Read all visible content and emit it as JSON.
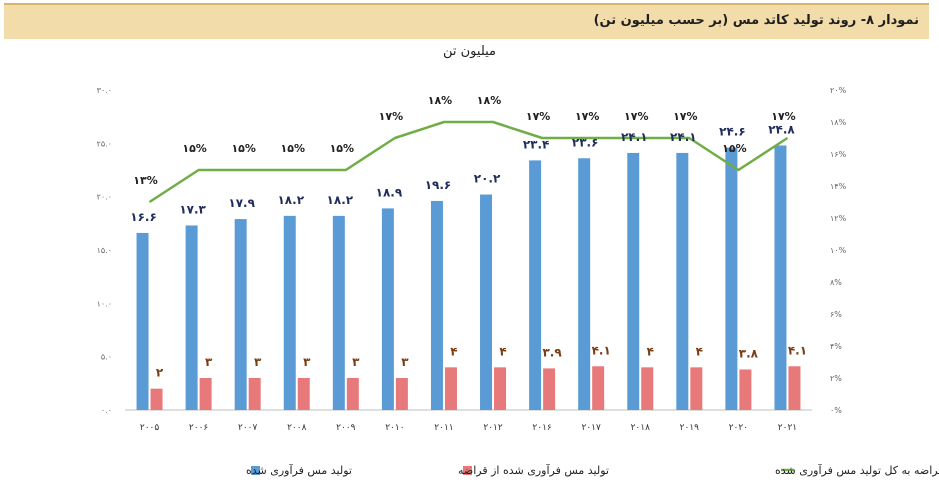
{
  "header": {
    "title": "نمودار ۸- روند تولید کاتد مس (بر حسب میلیون تن)"
  },
  "colors": {
    "production": "#5b9bd5",
    "scrap": "#e8797a",
    "ratio": "#70ad47"
  },
  "chart_data": {
    "type": "bar",
    "title": "نمودار ۸- روند تولید کاتد مس (بر حسب میلیون تن)",
    "ylabel": "میلیون تن",
    "categories": [
      "۲۰۰۵",
      "۲۰۰۶",
      "۲۰۰۷",
      "۲۰۰۸",
      "۲۰۰۹",
      "۲۰۱۰",
      "۲۰۱۱",
      "۲۰۱۲",
      "۲۰۱۶",
      "۲۰۱۷",
      "۲۰۱۸",
      "۲۰۱۹",
      "۲۰۲۰",
      "۲۰۲۱"
    ],
    "ylim": [
      0,
      30
    ],
    "y2lim": [
      0,
      20
    ],
    "yticks": [
      "۰.۰",
      "۵.۰",
      "۱۰.۰",
      "۱۵.۰",
      "۲۰.۰",
      "۲۵.۰",
      "۳۰.۰"
    ],
    "y2ticks": [
      "۰%",
      "۲%",
      "۴%",
      "۶%",
      "۸%",
      "۱۰%",
      "۱۲%",
      "۱۴%",
      "۱۶%",
      "۱۸%",
      "۲۰%"
    ],
    "series": [
      {
        "name": "تولید مس فرآوری شده",
        "type": "bar",
        "values": [
          16.6,
          17.3,
          17.9,
          18.2,
          18.2,
          18.9,
          19.6,
          20.2,
          23.4,
          23.6,
          24.1,
          24.1,
          24.6,
          24.8
        ],
        "labels": [
          "۱۶.۶",
          "۱۷.۳",
          "۱۷.۹",
          "۱۸.۲",
          "۱۸.۲",
          "۱۸.۹",
          "۱۹.۶",
          "۲۰.۲",
          "۲۳.۴",
          "۲۳.۶",
          "۲۴.۱",
          "۲۴.۱",
          "۲۴.۶",
          "۲۴.۸"
        ]
      },
      {
        "name": "تولید مس فرآوری شده از قراضه",
        "type": "bar",
        "values": [
          2,
          3,
          3,
          3,
          3,
          3,
          4,
          4,
          3.9,
          4.1,
          4,
          4,
          3.8,
          4.1
        ],
        "labels": [
          "۲",
          "۳",
          "۳",
          "۳",
          "۳",
          "۳",
          "۴",
          "۴",
          "۳.۹",
          "۴.۱",
          "۴",
          "۴",
          "۳.۸",
          "۴.۱"
        ]
      },
      {
        "name": "نسبت مس فرآوری شده از قراضه به کل تولید مس فرآوری شده",
        "type": "line",
        "axis": "secondary",
        "values": [
          13,
          15,
          15,
          15,
          15,
          17,
          18,
          18,
          17,
          17,
          17,
          17,
          15,
          17
        ],
        "labels": [
          "۱۳%",
          "۱۵%",
          "۱۵%",
          "۱۵%",
          "۱۵%",
          "۱۷%",
          "۱۸%",
          "۱۸%",
          "۱۷%",
          "۱۷%",
          "۱۷%",
          "۱۷%",
          "۱۵%",
          "۱۷%"
        ]
      }
    ]
  }
}
